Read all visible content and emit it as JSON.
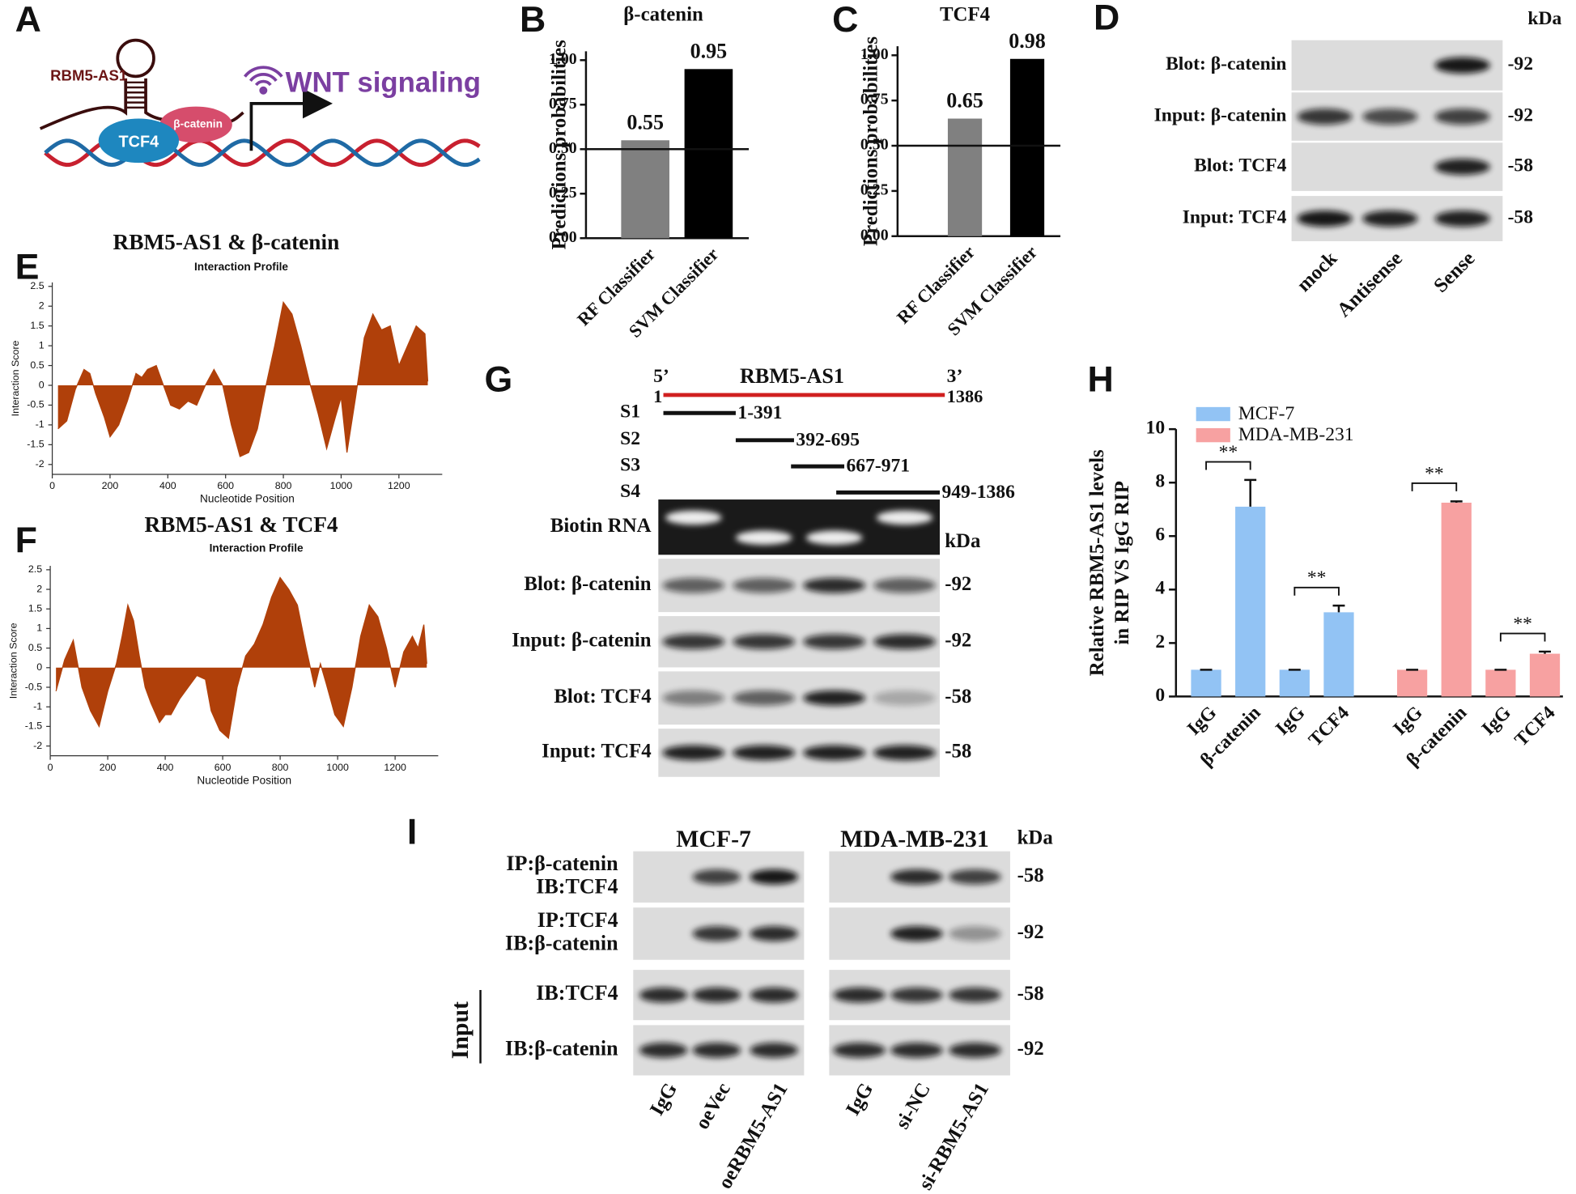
{
  "panel_labels": [
    "A",
    "B",
    "C",
    "D",
    "E",
    "F",
    "G",
    "H",
    "I"
  ],
  "panel_a": {
    "rna": "RBM5-AS1",
    "protein_1": "TCF4",
    "protein_2": "β-catenin",
    "pathway": "WNT signaling"
  },
  "panel_d": {
    "kda": "kDa",
    "rows": [
      "Blot: β-catenin",
      "Input: β-catenin",
      "Blot: TCF4",
      "Input: TCF4"
    ],
    "sizes": [
      "-92",
      "-92",
      "-58",
      "-58"
    ],
    "lanes": [
      "mock",
      "Antisense",
      "Sense"
    ]
  },
  "panel_g": {
    "five_prime": "5’",
    "name": "RBM5-AS1",
    "three_prime": "3’",
    "start": "1",
    "end": "1386",
    "fragments": [
      {
        "name": "S1",
        "range": "1-391"
      },
      {
        "name": "S2",
        "range": "392-695"
      },
      {
        "name": "S3",
        "range": "667-971"
      },
      {
        "name": "S4",
        "range": "949-1386"
      }
    ],
    "rows": [
      "Biotin RNA",
      "Blot: β-catenin",
      "Input: β-catenin",
      "Blot: TCF4",
      "Input: TCF4"
    ],
    "kda": "kDa",
    "sizes": [
      "-92",
      "-92",
      "-58",
      "-58"
    ]
  },
  "panel_i": {
    "groups": [
      "MCF-7",
      "MDA-MB-231"
    ],
    "kda": "kDa",
    "rows": [
      [
        "IP:β-catenin",
        "IB:TCF4"
      ],
      [
        "IP:TCF4",
        "IB:β-catenin"
      ],
      [
        "IB:TCF4"
      ],
      [
        "IB:β-catenin"
      ]
    ],
    "input": "Input",
    "sizes": [
      "-58",
      "-92",
      "-58",
      "-92"
    ],
    "lanes": [
      "IgG",
      "oeVec",
      "oeRBM5-AS1",
      "IgG",
      "si-NC",
      "si-RBM5-AS1"
    ]
  },
  "chart_data": [
    {
      "type": "bar",
      "title": "β-catenin",
      "ylabel": "Predictions probabilities",
      "categories": [
        "RF Classifier",
        "SVM Classifier"
      ],
      "values": [
        0.55,
        0.95
      ],
      "colors": [
        "#808080",
        "#000000"
      ],
      "ylim": [
        0,
        1.05
      ],
      "yticks": [
        {
          "value": 0,
          "label": "0.00"
        },
        {
          "value": 0.25,
          "label": "0.25"
        },
        {
          "value": 0.5,
          "label": "0.50"
        },
        {
          "value": 0.75,
          "label": "0.75"
        },
        {
          "value": 1,
          "label": "1.00"
        }
      ],
      "reference_line": 0.5
    },
    {
      "type": "bar",
      "title": "TCF4",
      "ylabel": "Predictions probabilities",
      "categories": [
        "RF Classifier",
        "SVM Classifier"
      ],
      "values": [
        0.65,
        0.98
      ],
      "colors": [
        "#808080",
        "#000000"
      ],
      "ylim": [
        0,
        1.05
      ],
      "yticks": [
        {
          "value": 0,
          "label": "0.00"
        },
        {
          "value": 0.25,
          "label": "0.25"
        },
        {
          "value": 0.5,
          "label": "0.50"
        },
        {
          "value": 0.75,
          "label": "0.75"
        },
        {
          "value": 1,
          "label": "1.00"
        }
      ],
      "reference_line": 0.5
    },
    {
      "type": "area",
      "title": "RBM5-AS1 & β-catenin",
      "subtitle": "Interaction Profile",
      "xlabel": "Nucleotide Position",
      "ylabel": "Interaction Score",
      "color": "#b0400a",
      "x": [
        20,
        50,
        80,
        110,
        130,
        150,
        180,
        200,
        230,
        260,
        290,
        310,
        330,
        360,
        380,
        410,
        440,
        470,
        500,
        530,
        560,
        590,
        620,
        650,
        680,
        710,
        740,
        770,
        800,
        830,
        860,
        890,
        920,
        950,
        980,
        1000,
        1020,
        1050,
        1080,
        1110,
        1140,
        1170,
        1200,
        1230,
        1260,
        1290,
        1300
      ],
      "values": [
        -1.1,
        -0.9,
        -0.1,
        0.4,
        0.3,
        -0.2,
        -0.8,
        -1.3,
        -1.0,
        -0.4,
        0.3,
        0.2,
        0.4,
        0.5,
        0.1,
        -0.5,
        -0.6,
        -0.4,
        -0.5,
        0.0,
        0.4,
        0.0,
        -1.0,
        -1.8,
        -1.7,
        -1.1,
        0.0,
        1.0,
        2.1,
        1.8,
        1.0,
        0.1,
        -0.7,
        -1.6,
        -0.8,
        -0.3,
        -1.7,
        -0.3,
        1.2,
        1.8,
        1.4,
        1.5,
        0.5,
        1.0,
        1.5,
        1.3,
        0.1
      ],
      "xlim": [
        0,
        1350
      ],
      "xticks": [
        0,
        200,
        400,
        600,
        800,
        1000,
        1200
      ],
      "ylim": [
        -2.25,
        2.6
      ],
      "yticks": [
        -2,
        -1.5,
        -1,
        -0.5,
        0,
        0.5,
        1,
        1.5,
        2,
        2.5
      ]
    },
    {
      "type": "area",
      "title": "RBM5-AS1 & TCF4",
      "subtitle": "Interaction Profile",
      "xlabel": "Nucleotide Position",
      "ylabel": "Interaction Score",
      "color": "#b0400a",
      "x": [
        20,
        50,
        80,
        110,
        140,
        170,
        200,
        230,
        250,
        270,
        290,
        310,
        330,
        350,
        380,
        400,
        420,
        450,
        480,
        510,
        540,
        560,
        590,
        620,
        650,
        680,
        710,
        740,
        770,
        800,
        830,
        860,
        890,
        920,
        940,
        960,
        990,
        1020,
        1050,
        1080,
        1110,
        1140,
        1170,
        1200,
        1230,
        1260,
        1280,
        1300,
        1310
      ],
      "values": [
        -0.6,
        0.2,
        0.7,
        -0.5,
        -1.1,
        -1.5,
        -0.6,
        0.1,
        0.8,
        1.6,
        1.2,
        0.3,
        -0.5,
        -0.9,
        -1.4,
        -1.2,
        -1.2,
        -0.8,
        -0.5,
        -0.2,
        -0.3,
        -1.1,
        -1.6,
        -1.8,
        -0.5,
        0.3,
        0.6,
        1.1,
        1.8,
        2.3,
        2.0,
        1.6,
        0.5,
        -0.5,
        0.1,
        -0.4,
        -1.2,
        -1.5,
        -0.5,
        0.8,
        1.6,
        1.3,
        0.5,
        -0.5,
        0.4,
        0.8,
        0.5,
        1.1,
        0.1
      ],
      "xlim": [
        0,
        1350
      ],
      "xticks": [
        0,
        200,
        400,
        600,
        800,
        1000,
        1200
      ],
      "ylim": [
        -2.25,
        2.6
      ],
      "yticks": [
        -2,
        -1.5,
        -1,
        -0.5,
        0,
        0.5,
        1,
        1.5,
        2,
        2.5
      ]
    },
    {
      "type": "grouped_bar",
      "ylabel": [
        "Relative RBM5-AS1 levels",
        "in RIP VS IgG RIP"
      ],
      "series": [
        {
          "name": "MCF-7",
          "color": "#92c3f4",
          "categories": [
            "IgG",
            "β-catenin",
            "IgG",
            "TCF4"
          ],
          "values": [
            1,
            7.1,
            1,
            3.15
          ],
          "errors": [
            0,
            1,
            0,
            0.25
          ],
          "significance": [
            "**",
            "**"
          ]
        },
        {
          "name": "MDA-MB-231",
          "color": "#f7a1a1",
          "categories": [
            "IgG",
            "β-catenin",
            "IgG",
            "TCF4"
          ],
          "values": [
            1,
            7.25,
            1,
            1.6
          ],
          "errors": [
            0,
            0.05,
            0,
            0.08
          ],
          "significance": [
            "**",
            "**"
          ]
        }
      ],
      "ylim": [
        0,
        10
      ],
      "yticks": [
        0,
        2,
        4,
        6,
        8,
        10
      ],
      "legend": "top-left"
    }
  ]
}
